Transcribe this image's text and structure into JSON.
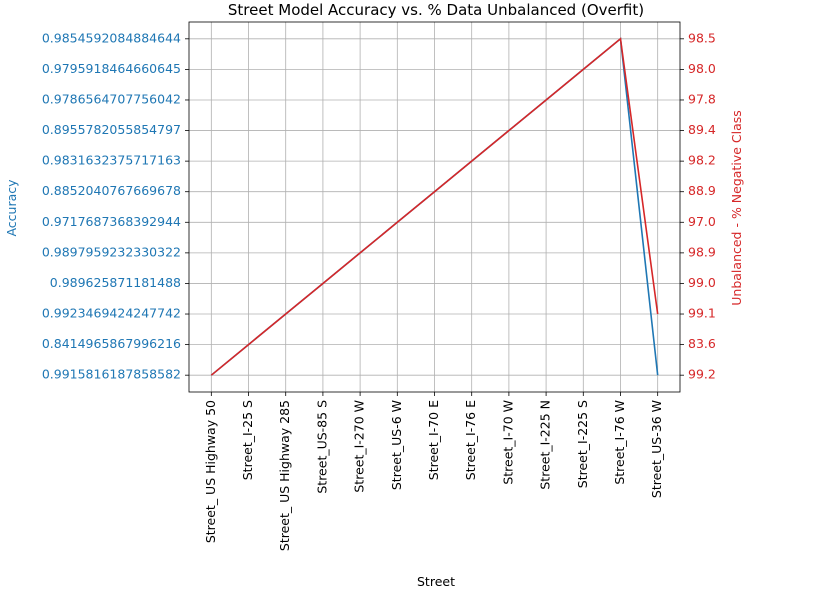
{
  "chart_data": {
    "type": "line",
    "title": "Street Model Accuracy vs. % Data Unbalanced (Overfit)",
    "x_label": "Street",
    "y_label": "Accuracy",
    "y2_label": "Unbalanced - % Negative Class",
    "grid": true,
    "categories": [
      "Street_ US Highway 50",
      "Street_I-25 S",
      "Street_ US Highway 285",
      "Street_US-85 S",
      "Street_I-270 W",
      "Street_US-6 W",
      "Street_I-70 E",
      "Street_I-76 E",
      "Street_I-70 W",
      "Street_I-225 N",
      "Street_I-225 S",
      "Street_I-76 W",
      "Street_US-36 W"
    ],
    "ycategories": [
      "0.9915816187858582",
      "0.8414965867996216",
      "0.9923469424247742",
      "0.989625871181488",
      "0.9897959232330322",
      "0.9717687368392944",
      "0.8852040767669678",
      "0.9831632375717163",
      "0.8955782055854797",
      "0.9786564707756042",
      "0.9795918464660645",
      "0.9854592084884644"
    ],
    "y2categories": [
      "99.2",
      "83.6",
      "99.1",
      "99.0",
      "98.9",
      "97.0",
      "88.9",
      "98.2",
      "89.4",
      "97.8",
      "98.0",
      "98.5"
    ],
    "series": [
      {
        "name": "Accuracy",
        "color": "#1f77b4",
        "axis": "y",
        "values": [
          "0.9915816187858582",
          "0.8414965867996216",
          "0.9923469424247742",
          "0.989625871181488",
          "0.9897959232330322",
          "0.9717687368392944",
          "0.8852040767669678",
          "0.9831632375717163",
          "0.8955782055854797",
          "0.9786564707756042",
          "0.9795918464660645",
          "0.9854592084884644",
          "0.9915816187858582"
        ]
      },
      {
        "name": "Unbalanced - % Negative Class",
        "color": "#d62728",
        "axis": "y2",
        "values": [
          "99.2",
          "83.6",
          "99.1",
          "99.0",
          "98.9",
          "97.0",
          "88.9",
          "98.2",
          "89.4",
          "97.8",
          "98.0",
          "98.5",
          "99.1"
        ]
      }
    ]
  }
}
